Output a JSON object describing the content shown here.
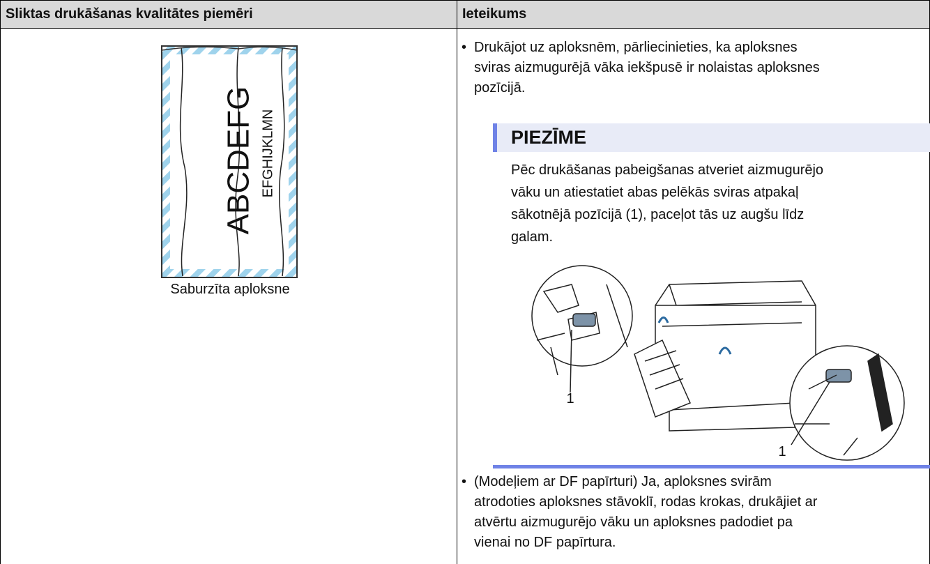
{
  "table": {
    "headers": [
      "Sliktas drukāšanas kvalitātes piemēri",
      "Ieteikums"
    ],
    "example": {
      "envelope_texts": [
        "ABCDEFG",
        "EFGHIJKLMN"
      ],
      "caption": "Saburzīta aploksne"
    },
    "recommendations": [
      [
        "Drukājot uz aploksnēm, pārliecinieties, ka aploksnes",
        "sviras aizmugurējā vāka iekšpusē ir nolaistas aploksnes",
        "pozīcijā."
      ],
      [
        "(Modeļiem ar DF papīrturi) Ja, aploksnes svirām",
        "atrodoties aploksnes stāvoklī, rodas krokas, drukājiet ar",
        "atvērtu aizmugurējo vāku un aploksnes padodiet pa",
        "vienai no DF papīrtura."
      ]
    ],
    "note": {
      "title": "PIEZĪME",
      "lines": [
        "Pēc drukāšanas pabeigšanas atveriet aizmugurējo",
        "vāku un atiestatiet abas pelēkās sviras atpakaļ",
        "sākotnējā pozīcijā (1), paceļot tās uz augšu līdz",
        "galam."
      ],
      "callouts": [
        "1",
        "1"
      ]
    }
  }
}
